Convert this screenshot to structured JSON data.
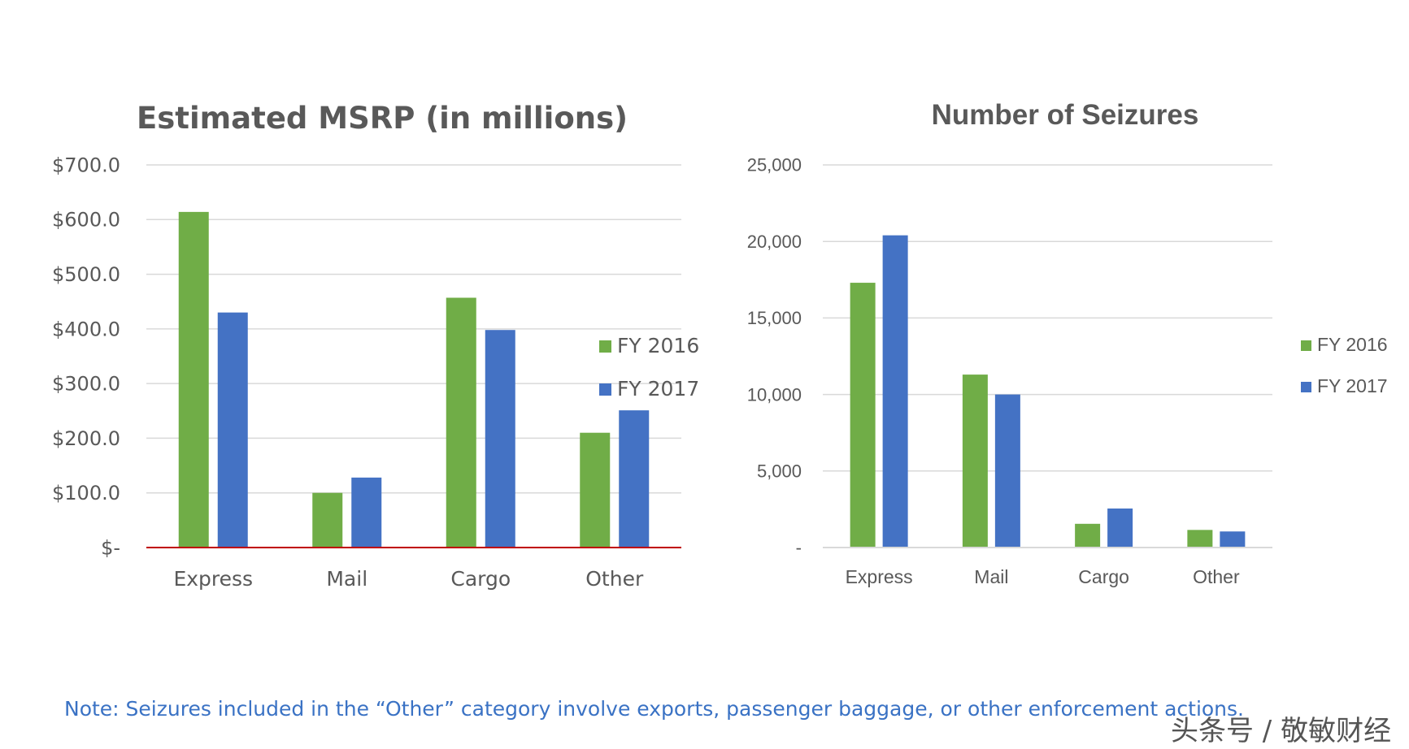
{
  "chart_data": [
    {
      "type": "bar",
      "title": "Estimated MSRP (in millions)",
      "categories": [
        "Express",
        "Mail",
        "Cargo",
        "Other"
      ],
      "series": [
        {
          "name": "FY 2016",
          "values": [
            614,
            100,
            457,
            210
          ]
        },
        {
          "name": "FY 2017",
          "values": [
            430,
            128,
            398,
            251
          ]
        }
      ],
      "ylim": [
        0,
        700
      ],
      "yticks": [
        0,
        100,
        200,
        300,
        400,
        500,
        600,
        700
      ],
      "ytick_labels": [
        "$-",
        "$100.0",
        "$200.0",
        "$300.0",
        "$400.0",
        "$500.0",
        "$600.0",
        "$700.0"
      ],
      "xlabel": "",
      "ylabel": "",
      "grid": true,
      "legend": "right"
    },
    {
      "type": "bar",
      "title": "Number of Seizures",
      "categories": [
        "Express",
        "Mail",
        "Cargo",
        "Other"
      ],
      "series": [
        {
          "name": "FY 2016",
          "values": [
            17300,
            11300,
            1550,
            1150
          ]
        },
        {
          "name": "FY 2017",
          "values": [
            20400,
            10000,
            2550,
            1050
          ]
        }
      ],
      "ylim": [
        0,
        25000
      ],
      "yticks": [
        0,
        5000,
        10000,
        15000,
        20000,
        25000
      ],
      "ytick_labels": [
        "-",
        "5,000",
        "10,000",
        "15,000",
        "20,000",
        "25,000"
      ],
      "xlabel": "",
      "ylabel": "",
      "grid": true,
      "legend": "right"
    }
  ],
  "colors": {
    "FY 2016": "#70ad47",
    "FY 2017": "#4472c4",
    "baseline_chart1": "#c00000",
    "grid": "#d9d9d9",
    "note": "#3a72c4"
  },
  "note": "Note: Seizures included in the “Other” category involve exports, passenger baggage, or other enforcement actions.",
  "watermark": "头条号 / 敬敏财经"
}
